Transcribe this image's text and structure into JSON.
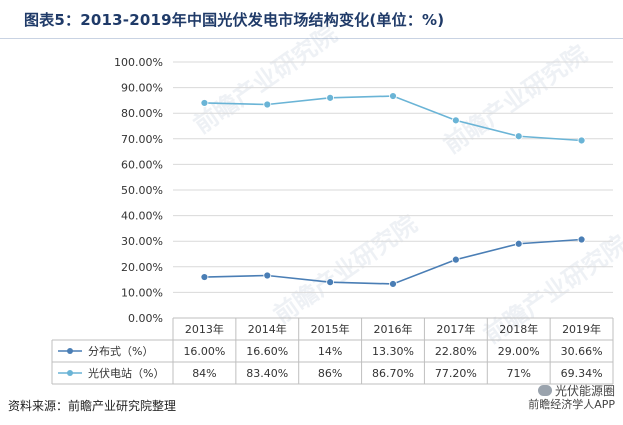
{
  "title": "图表5：2013-2019年中国光伏发电市场结构变化(单位：%)",
  "source": "资料来源：前瞻产业研究院整理",
  "brand": {
    "line1": "光伏能源圈",
    "line2": "前瞻经济学人APP"
  },
  "watermark": "前瞻产业研究院",
  "colors": {
    "series1": "#4a7eb5",
    "series2": "#6ab4d6",
    "title": "#1f3a68"
  },
  "chart_data": {
    "type": "line",
    "title": "图表5：2013-2019年中国光伏发电市场结构变化(单位：%)",
    "x": [
      "2013年",
      "2014年",
      "2015年",
      "2016年",
      "2017年",
      "2018年",
      "2019年"
    ],
    "ylim": [
      0,
      100
    ],
    "yticks": [
      "0.00%",
      "10.00%",
      "20.00%",
      "30.00%",
      "40.00%",
      "50.00%",
      "60.00%",
      "70.00%",
      "80.00%",
      "90.00%",
      "100.00%"
    ],
    "grid": true,
    "legend": "data-table",
    "series": [
      {
        "name": "分布式（%）",
        "values": [
          16.0,
          16.6,
          14.0,
          13.3,
          22.8,
          29.0,
          30.66
        ],
        "labels": [
          "16.00%",
          "16.60%",
          "14%",
          "13.30%",
          "22.80%",
          "29.00%",
          "30.66%"
        ]
      },
      {
        "name": "光伏电站（%）",
        "values": [
          84.0,
          83.4,
          86.0,
          86.7,
          77.2,
          71.0,
          69.34
        ],
        "labels": [
          "84%",
          "83.40%",
          "86%",
          "86.70%",
          "77.20%",
          "71%",
          "69.34%"
        ]
      }
    ]
  }
}
